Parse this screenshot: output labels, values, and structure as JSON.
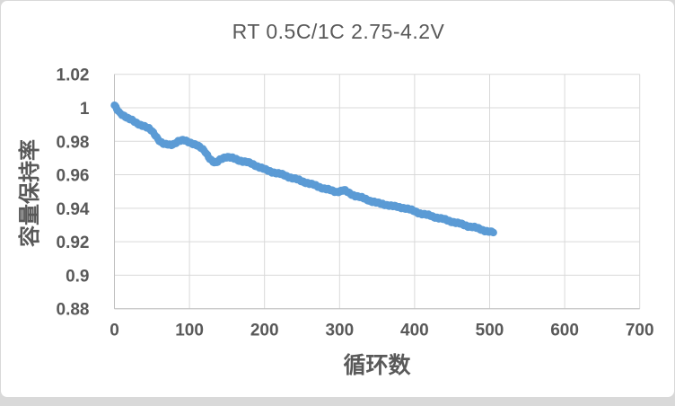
{
  "chart": {
    "title": "RT 0.5C/1C 2.75-4.2V",
    "colors": {
      "series": "#5B9BD5",
      "grid": "#D9D9D9",
      "axis": "#BFBFBF",
      "text": "#595959",
      "card_border": "#D9D9D9",
      "bottom_strip": "#D9D9D9",
      "background": "#FFFFFF"
    }
  },
  "chart_data": {
    "type": "scatter",
    "title": "RT 0.5C/1C 2.75-4.2V",
    "xlabel": "循环数",
    "ylabel": "容量保持率",
    "xlim": [
      0,
      700
    ],
    "ylim": [
      0.88,
      1.02
    ],
    "x_ticks": [
      0,
      100,
      200,
      300,
      400,
      500,
      600,
      700
    ],
    "x_tick_labels": [
      "0",
      "100",
      "200",
      "300",
      "400",
      "500",
      "600",
      "700"
    ],
    "y_ticks": [
      1.02,
      1.0,
      0.98,
      0.96,
      0.94,
      0.92,
      0.9,
      0.88
    ],
    "y_tick_labels": [
      "1.02",
      "1",
      "0.98",
      "0.96",
      "0.94",
      "0.92",
      "0.9",
      "0.88"
    ],
    "grid": true,
    "legend": false,
    "marker": "circle",
    "series": [
      {
        "name": "容量保持率",
        "points": [
          [
            0,
            1.0015
          ],
          [
            1,
            1.0008
          ],
          [
            2,
            1.0
          ],
          [
            3,
            0.9992
          ],
          [
            4,
            0.9985
          ],
          [
            6,
            0.9972
          ],
          [
            8,
            0.9963
          ],
          [
            10,
            0.9958
          ],
          [
            13,
            0.9952
          ],
          [
            16,
            0.9945
          ],
          [
            19,
            0.9938
          ],
          [
            22,
            0.993
          ],
          [
            25,
            0.992
          ],
          [
            28,
            0.991
          ],
          [
            31,
            0.9903
          ],
          [
            34,
            0.9899
          ],
          [
            37,
            0.9896
          ],
          [
            40,
            0.9892
          ],
          [
            43,
            0.9884
          ],
          [
            46,
            0.9875
          ],
          [
            49,
            0.9863
          ],
          [
            52,
            0.9848
          ],
          [
            55,
            0.9833
          ],
          [
            58,
            0.9815
          ],
          [
            61,
            0.98
          ],
          [
            64,
            0.9789
          ],
          [
            67,
            0.9782
          ],
          [
            70,
            0.9779
          ],
          [
            73,
            0.9778
          ],
          [
            76,
            0.9779
          ],
          [
            79,
            0.9784
          ],
          [
            82,
            0.9794
          ],
          [
            85,
            0.9801
          ],
          [
            88,
            0.9803
          ],
          [
            91,
            0.9804
          ],
          [
            94,
            0.9802
          ],
          [
            97,
            0.9799
          ],
          [
            100,
            0.9794
          ],
          [
            103,
            0.9789
          ],
          [
            106,
            0.9785
          ],
          [
            109,
            0.9777
          ],
          [
            112,
            0.9769
          ],
          [
            115,
            0.976
          ],
          [
            118,
            0.975
          ],
          [
            121,
            0.9738
          ],
          [
            124,
            0.9718
          ],
          [
            127,
            0.9698
          ],
          [
            130,
            0.9683
          ],
          [
            133,
            0.9672
          ],
          [
            136,
            0.967
          ],
          [
            139,
            0.9684
          ],
          [
            142,
            0.9695
          ],
          [
            145,
            0.9702
          ],
          [
            148,
            0.9706
          ],
          [
            151,
            0.9705
          ],
          [
            156,
            0.97
          ],
          [
            161,
            0.9694
          ],
          [
            166,
            0.9687
          ],
          [
            171,
            0.9681
          ],
          [
            176,
            0.9675
          ],
          [
            181,
            0.9668
          ],
          [
            186,
            0.966
          ],
          [
            191,
            0.965
          ],
          [
            196,
            0.964
          ],
          [
            201,
            0.963
          ],
          [
            206,
            0.9622
          ],
          [
            211,
            0.9616
          ],
          [
            216,
            0.961
          ],
          [
            221,
            0.9604
          ],
          [
            226,
            0.9597
          ],
          [
            231,
            0.959
          ],
          [
            236,
            0.9582
          ],
          [
            241,
            0.9575
          ],
          [
            246,
            0.9567
          ],
          [
            251,
            0.956
          ],
          [
            256,
            0.9553
          ],
          [
            261,
            0.9545
          ],
          [
            266,
            0.9538
          ],
          [
            271,
            0.953
          ],
          [
            276,
            0.9523
          ],
          [
            281,
            0.9516
          ],
          [
            286,
            0.9509
          ],
          [
            291,
            0.9502
          ],
          [
            296,
            0.9498
          ],
          [
            301,
            0.9503
          ],
          [
            306,
            0.9507
          ],
          [
            309,
            0.95
          ],
          [
            312,
            0.9492
          ],
          [
            316,
            0.9483
          ],
          [
            321,
            0.9475
          ],
          [
            326,
            0.9468
          ],
          [
            331,
            0.946
          ],
          [
            336,
            0.9452
          ],
          [
            341,
            0.9445
          ],
          [
            346,
            0.9438
          ],
          [
            351,
            0.943
          ],
          [
            356,
            0.9425
          ],
          [
            361,
            0.9422
          ],
          [
            366,
            0.9418
          ],
          [
            371,
            0.9412
          ],
          [
            376,
            0.9408
          ],
          [
            381,
            0.9405
          ],
          [
            386,
            0.9402
          ],
          [
            391,
            0.9396
          ],
          [
            396,
            0.9388
          ],
          [
            401,
            0.938
          ],
          [
            406,
            0.9372
          ],
          [
            411,
            0.9365
          ],
          [
            416,
            0.936
          ],
          [
            421,
            0.9355
          ],
          [
            426,
            0.9349
          ],
          [
            431,
            0.9343
          ],
          [
            436,
            0.9337
          ],
          [
            441,
            0.9331
          ],
          [
            446,
            0.9325
          ],
          [
            451,
            0.9319
          ],
          [
            456,
            0.9312
          ],
          [
            461,
            0.9306
          ],
          [
            466,
            0.93
          ],
          [
            471,
            0.9294
          ],
          [
            476,
            0.9289
          ],
          [
            481,
            0.9284
          ],
          [
            486,
            0.9277
          ],
          [
            491,
            0.927
          ],
          [
            496,
            0.9264
          ],
          [
            501,
            0.9258
          ],
          [
            505,
            0.9255
          ]
        ]
      }
    ]
  }
}
